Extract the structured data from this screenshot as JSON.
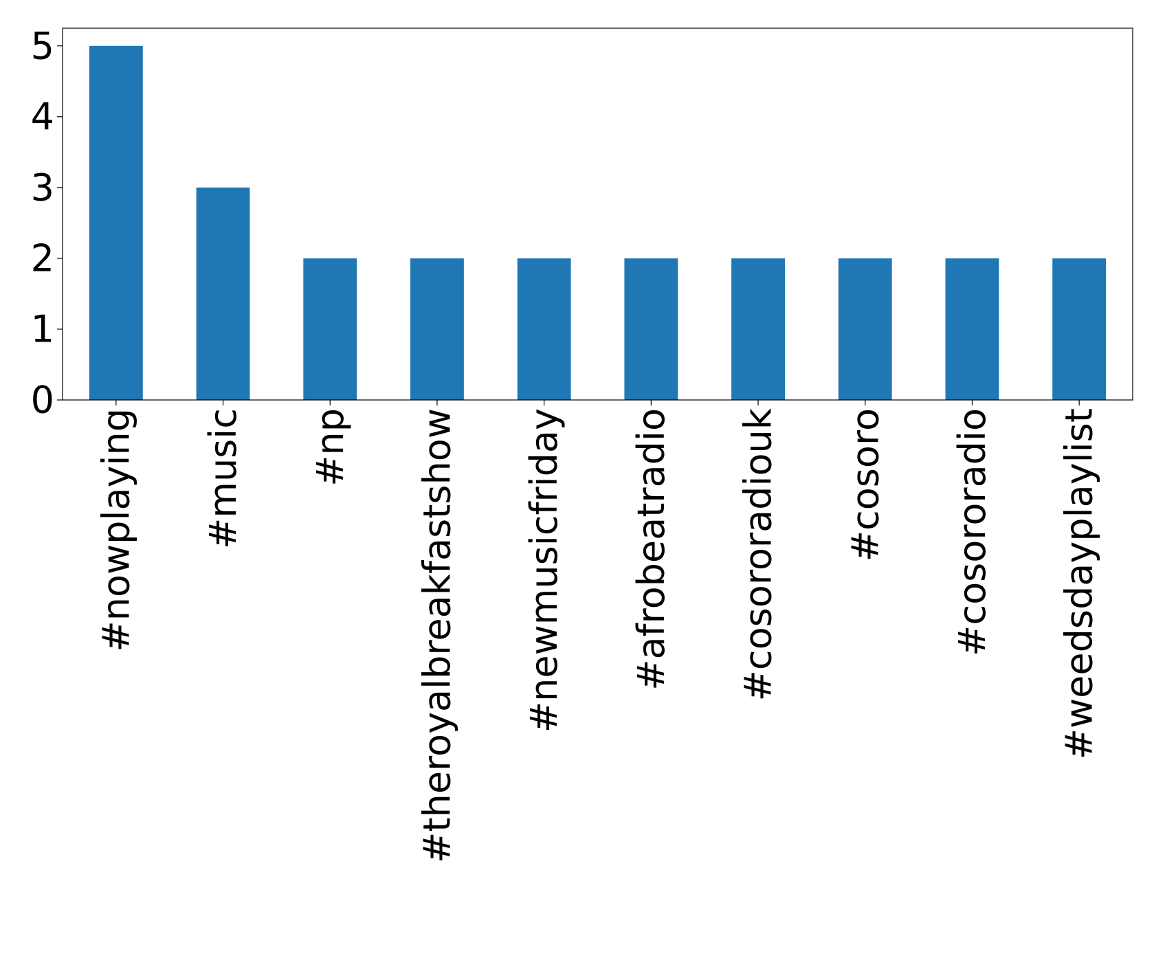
{
  "chart_data": {
    "type": "bar",
    "categories": [
      "#nowplaying",
      "#music",
      "#np",
      "#theroyalbreakfastshow",
      "#newmusicfriday",
      "#afrobeatradio",
      "#cosororadiouk",
      "#cosoro",
      "#cosororadio",
      "#weedsdayplaylist"
    ],
    "values": [
      5,
      3,
      2,
      2,
      2,
      2,
      2,
      2,
      2,
      2
    ],
    "color": "#1f77b4",
    "ylim": [
      0,
      5.25
    ],
    "yticks": [
      0,
      1,
      2,
      3,
      4,
      5
    ],
    "grid": false
  }
}
